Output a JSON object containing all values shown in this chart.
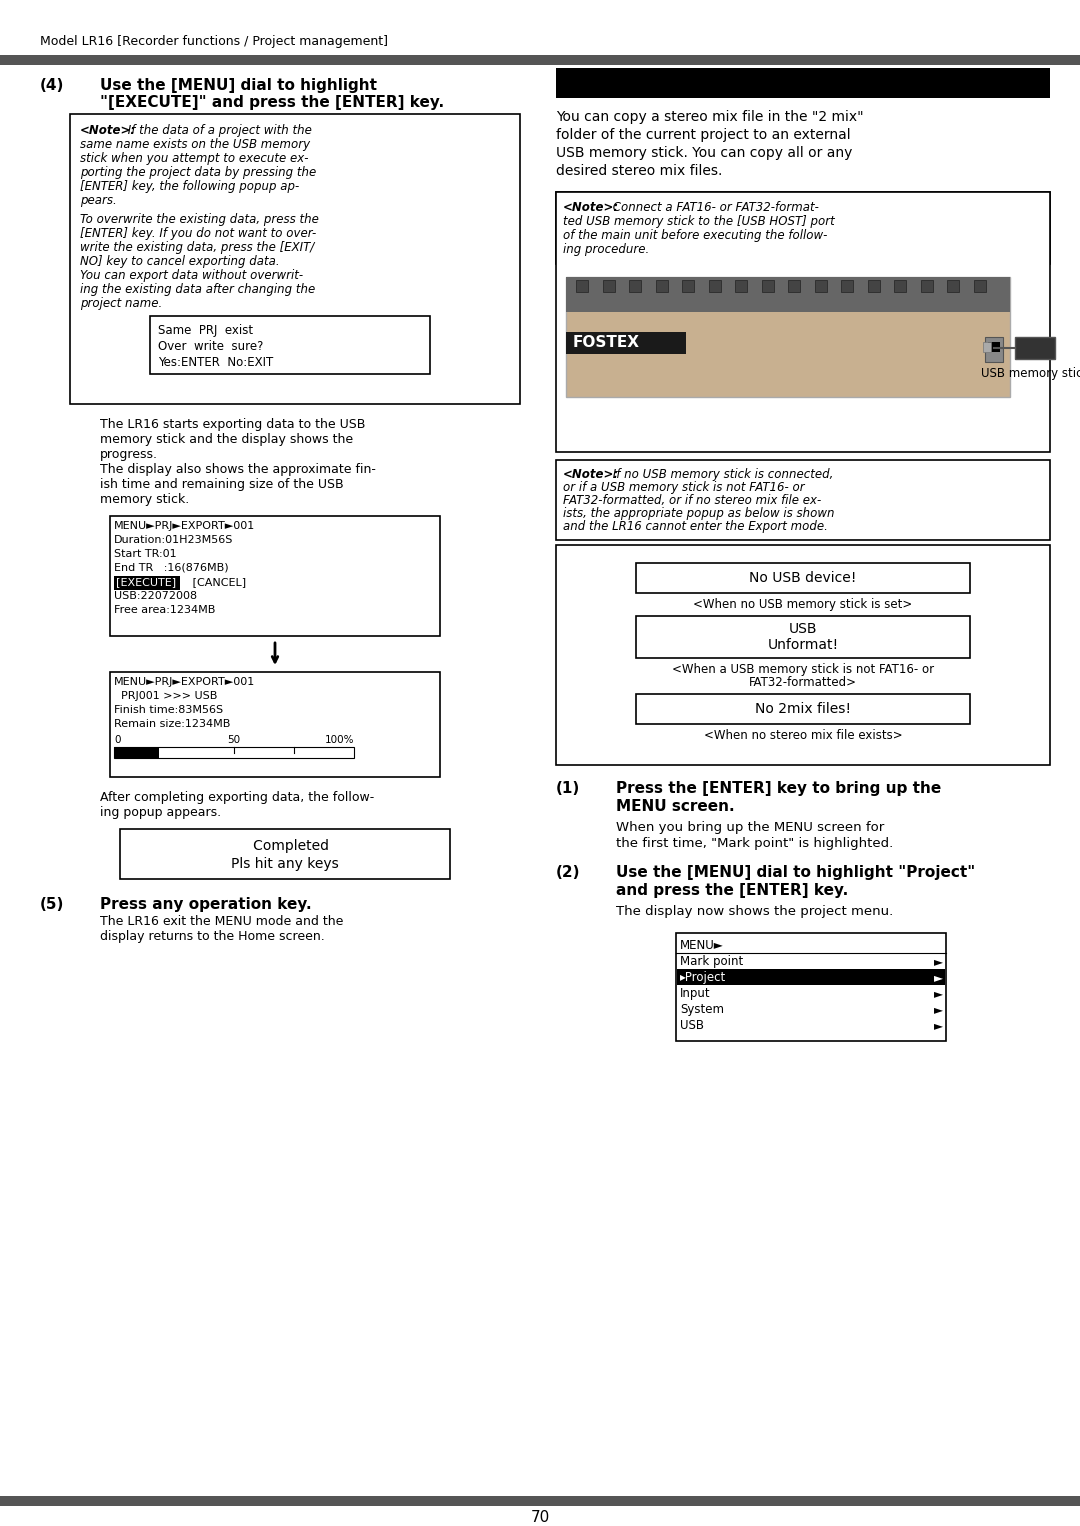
{
  "page_header": "Model LR16 [Recorder functions / Project management]",
  "page_number": "70",
  "header_bar_color": "#555555",
  "footer_bar_color": "#555555",
  "bg_color": "#ffffff",
  "left_column": {
    "lcd1_lines": [
      "Same  PRJ  exist",
      "Over  write  sure?",
      "Yes:ENTER  No:EXIT"
    ],
    "body_text1_lines": [
      "The LR16 starts exporting data to the USB",
      "memory stick and the display shows the",
      "progress.",
      "The display also shows the approximate fin-",
      "ish time and remaining size of the USB",
      "memory stick."
    ],
    "lcd2_header": "MENU►PRJ►EXPORT►001",
    "lcd2_lines": [
      "Duration:01H23M56S",
      "Start TR:01",
      "End TR   :16(876MB)",
      "[EXECUTE]   [CANCEL]",
      "USB:22072008",
      "Free area:1234MB"
    ],
    "lcd3_header": "MENU►PRJ►EXPORT►001",
    "lcd3_lines": [
      "  PRJ001 >>> USB",
      "Finish time:83M56S",
      "Remain size:1234MB"
    ],
    "body_text2_lines": [
      "After completing exporting data, the follow-",
      "ing popup appears."
    ],
    "lcd4_lines": [
      "   Completed",
      "Pls hit any keys"
    ],
    "section5_body_lines": [
      "The LR16 exit the MENU mode and the",
      "display returns to the Home screen."
    ]
  },
  "right_column": {
    "intro_lines": [
      "You can copy a stereo mix file in the \"2 mix\"",
      "folder of the current project to an external",
      "USB memory stick. You can copy all or any",
      "desired stereo mix files."
    ],
    "note2_lines": [
      "<Note>: Connect a FAT16- or FAT32-format-",
      "ted USB memory stick to the [USB HOST] port",
      "of the main unit before executing the follow-",
      "ing procedure."
    ],
    "usb_label": "USB memory stick",
    "note3_lines": [
      "<Note>: If no USB memory stick is connected,",
      "or if a USB memory stick is not FAT16- or",
      "FAT32-formatted, or if no stereo mix file ex-",
      "ists, the appropriate popup as below is shown",
      "and the LR16 cannot enter the Export mode."
    ],
    "popup1": "No USB device!",
    "popup1_caption": "<When no USB memory stick is set>",
    "popup2_line1": "USB",
    "popup2_line2": "Unformat!",
    "popup2_caption1": "<When a USB memory stick is not FAT16- or",
    "popup2_caption2": "FAT32-formatted>",
    "popup3": "No 2mix files!",
    "popup3_caption": "<When no stereo mix file exists>",
    "section1_body_lines": [
      "When you bring up the MENU screen for",
      "the first time, \"Mark point\" is highlighted."
    ],
    "section2_body_lines": [
      "The display now shows the project menu."
    ],
    "menu_header": "MENU►",
    "menu_lines": [
      "Mark point",
      "▸Project",
      "Input",
      "System",
      "USB"
    ],
    "menu_arrow_lines": [
      true,
      true,
      true,
      true,
      true
    ],
    "menu_highlight_line": 1
  }
}
